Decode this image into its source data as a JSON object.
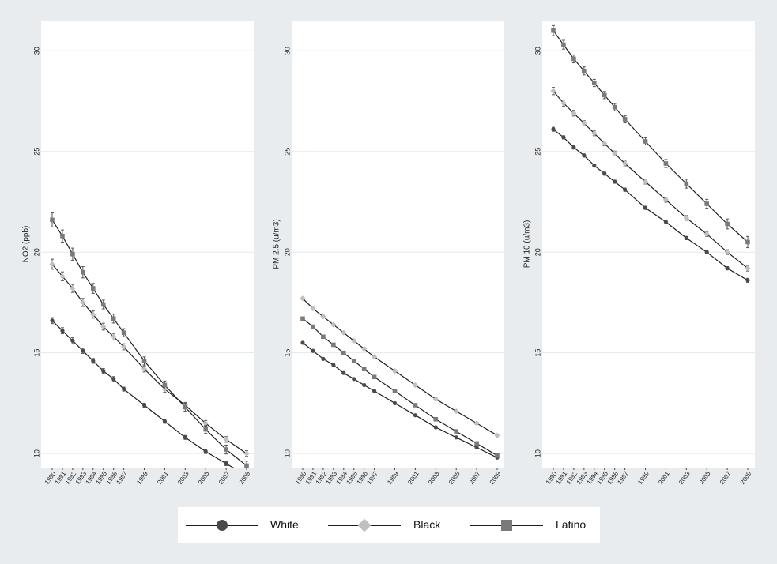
{
  "chart_data": [
    {
      "type": "line",
      "ylabel": "NO2 (ppb)",
      "ylim": [
        9.3,
        31.5
      ],
      "yticks": [
        10,
        15,
        20,
        25,
        30
      ],
      "x_tick_labels": [
        "1990",
        "1991",
        "1992",
        "1993",
        "1994",
        "1995",
        "1996",
        "1997",
        "1999",
        "2001",
        "2003",
        "2005",
        "2007",
        "2009"
      ],
      "grid": true,
      "series": [
        {
          "name": "White",
          "x": [
            1990,
            1991,
            1992,
            1993,
            1994,
            1995,
            1996,
            1997,
            1999,
            2001,
            2003,
            2005,
            2007,
            2009
          ],
          "y": [
            16.6,
            16.1,
            15.6,
            15.1,
            14.6,
            14.1,
            13.7,
            13.2,
            12.4,
            11.6,
            10.8,
            10.1,
            9.5,
            8.9
          ],
          "err": [
            0.15,
            0.15,
            0.15,
            0.13,
            0.12,
            0.12,
            0.12,
            0.1,
            0.1,
            0.1,
            0.1,
            0.1,
            0.1,
            0.12
          ]
        },
        {
          "name": "Black",
          "x": [
            1990,
            1991,
            1992,
            1993,
            1994,
            1995,
            1996,
            1997,
            1999,
            2001,
            2003,
            2005,
            2007,
            2009
          ],
          "y": [
            19.4,
            18.8,
            18.2,
            17.5,
            16.9,
            16.3,
            15.8,
            15.3,
            14.2,
            13.2,
            12.4,
            11.5,
            10.7,
            10.0
          ],
          "err": [
            0.25,
            0.22,
            0.2,
            0.2,
            0.18,
            0.17,
            0.16,
            0.15,
            0.15,
            0.15,
            0.14,
            0.14,
            0.14,
            0.14
          ]
        },
        {
          "name": "Latino",
          "x": [
            1990,
            1991,
            1992,
            1993,
            1994,
            1995,
            1996,
            1997,
            1999,
            2001,
            2003,
            2005,
            2007,
            2009
          ],
          "y": [
            21.6,
            20.8,
            19.9,
            19.0,
            18.2,
            17.4,
            16.7,
            16.0,
            14.6,
            13.4,
            12.3,
            11.2,
            10.2,
            9.4
          ],
          "err": [
            0.35,
            0.3,
            0.3,
            0.28,
            0.25,
            0.22,
            0.22,
            0.2,
            0.2,
            0.2,
            0.2,
            0.2,
            0.22,
            0.22
          ]
        }
      ]
    },
    {
      "type": "line",
      "ylabel": "PM 2.5 (u/m3)",
      "ylim": [
        9.3,
        31.5
      ],
      "yticks": [
        10,
        15,
        20,
        25,
        30
      ],
      "x_tick_labels": [
        "1990",
        "1991",
        "1992",
        "1993",
        "1994",
        "1995",
        "1996",
        "1997",
        "1999",
        "2001",
        "2003",
        "2005",
        "2007",
        "2009"
      ],
      "grid": true,
      "series": [
        {
          "name": "White",
          "x": [
            1990,
            1991,
            1992,
            1993,
            1994,
            1995,
            1996,
            1997,
            1999,
            2001,
            2003,
            2005,
            2007,
            2009
          ],
          "y": [
            15.5,
            15.1,
            14.7,
            14.4,
            14.0,
            13.7,
            13.4,
            13.1,
            12.5,
            11.9,
            11.3,
            10.8,
            10.3,
            9.8
          ],
          "err": [
            0.05,
            0.05,
            0.05,
            0.05,
            0.05,
            0.05,
            0.05,
            0.05,
            0.05,
            0.05,
            0.05,
            0.05,
            0.05,
            0.05
          ]
        },
        {
          "name": "Black",
          "x": [
            1990,
            1991,
            1992,
            1993,
            1994,
            1995,
            1996,
            1997,
            1999,
            2001,
            2003,
            2005,
            2007,
            2009
          ],
          "y": [
            17.7,
            17.2,
            16.8,
            16.4,
            16.0,
            15.6,
            15.2,
            14.8,
            14.1,
            13.4,
            12.7,
            12.1,
            11.5,
            10.9
          ],
          "err": [
            0.06,
            0.06,
            0.06,
            0.06,
            0.06,
            0.06,
            0.06,
            0.06,
            0.06,
            0.06,
            0.06,
            0.06,
            0.06,
            0.06
          ]
        },
        {
          "name": "Latino",
          "x": [
            1990,
            1991,
            1992,
            1993,
            1994,
            1995,
            1996,
            1997,
            1999,
            2001,
            2003,
            2005,
            2007,
            2009
          ],
          "y": [
            16.7,
            16.3,
            15.8,
            15.4,
            15.0,
            14.6,
            14.2,
            13.8,
            13.1,
            12.4,
            11.7,
            11.1,
            10.5,
            9.9
          ],
          "err": [
            0.06,
            0.06,
            0.06,
            0.06,
            0.06,
            0.06,
            0.06,
            0.06,
            0.06,
            0.06,
            0.06,
            0.06,
            0.06,
            0.06
          ]
        }
      ]
    },
    {
      "type": "line",
      "ylabel": "PM 10 (u/m3)",
      "ylim": [
        9.3,
        31.5
      ],
      "yticks": [
        10,
        15,
        20,
        25,
        30
      ],
      "x_tick_labels": [
        "1990",
        "1991",
        "1992",
        "1993",
        "1994",
        "1995",
        "1996",
        "1997",
        "1999",
        "2001",
        "2003",
        "2005",
        "2007",
        "2009"
      ],
      "grid": true,
      "series": [
        {
          "name": "White",
          "x": [
            1990,
            1991,
            1992,
            1993,
            1994,
            1995,
            1996,
            1997,
            1999,
            2001,
            2003,
            2005,
            2007,
            2009
          ],
          "y": [
            26.1,
            25.7,
            25.2,
            24.8,
            24.3,
            23.9,
            23.5,
            23.1,
            22.2,
            21.5,
            20.7,
            20.0,
            19.2,
            18.6
          ],
          "err": [
            0.1,
            0.08,
            0.08,
            0.08,
            0.08,
            0.08,
            0.08,
            0.08,
            0.08,
            0.08,
            0.08,
            0.08,
            0.08,
            0.1
          ]
        },
        {
          "name": "Black",
          "x": [
            1990,
            1991,
            1992,
            1993,
            1994,
            1995,
            1996,
            1997,
            1999,
            2001,
            2003,
            2005,
            2007,
            2009
          ],
          "y": [
            28.0,
            27.4,
            26.9,
            26.4,
            25.9,
            25.4,
            24.9,
            24.4,
            23.5,
            22.6,
            21.7,
            20.9,
            20.0,
            19.2
          ],
          "err": [
            0.18,
            0.15,
            0.14,
            0.13,
            0.12,
            0.12,
            0.12,
            0.12,
            0.12,
            0.12,
            0.12,
            0.12,
            0.12,
            0.14
          ]
        },
        {
          "name": "Latino",
          "x": [
            1990,
            1991,
            1992,
            1993,
            1994,
            1995,
            1996,
            1997,
            1999,
            2001,
            2003,
            2005,
            2007,
            2009
          ],
          "y": [
            31.0,
            30.3,
            29.6,
            29.0,
            28.4,
            27.8,
            27.2,
            26.6,
            25.5,
            24.4,
            23.4,
            22.4,
            21.4,
            20.5
          ],
          "err": [
            0.25,
            0.22,
            0.2,
            0.2,
            0.18,
            0.18,
            0.18,
            0.18,
            0.18,
            0.2,
            0.22,
            0.22,
            0.25,
            0.28
          ]
        }
      ]
    }
  ],
  "legend": {
    "items": [
      {
        "label": "White",
        "marker": "circle"
      },
      {
        "label": "Black",
        "marker": "diamond"
      },
      {
        "label": "Latino",
        "marker": "square"
      }
    ]
  },
  "colors": {
    "figure_background": "#e8ecef",
    "panel_background": "#ffffff",
    "gridline": "#e3e8ec",
    "line": "#1e1e1e",
    "white_marker": "#4a4a4a",
    "black_marker": "#bfbfbf",
    "latino_marker": "#7a7a7a"
  }
}
